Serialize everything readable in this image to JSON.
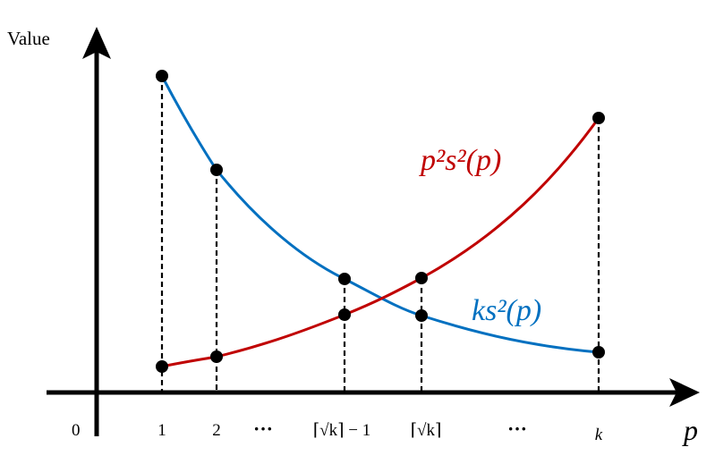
{
  "axes": {
    "y_label": "Value",
    "x_label": "p",
    "origin_label": "0"
  },
  "ticks": [
    {
      "id": "t1",
      "label": "1"
    },
    {
      "id": "t2",
      "label": "2"
    },
    {
      "id": "dots1",
      "label": "···"
    },
    {
      "id": "tsqrtm1",
      "label": "⌈√k⌉ − 1"
    },
    {
      "id": "tsqrt",
      "label": "⌈√k⌉"
    },
    {
      "id": "dots2",
      "label": "···"
    },
    {
      "id": "tk",
      "label": "k"
    }
  ],
  "curves": {
    "red": {
      "label": "p²s²(p)",
      "color": "#c00000"
    },
    "blue": {
      "label": "ks²(p)",
      "color": "#0070c0"
    }
  },
  "colors": {
    "axis": "#000000",
    "points": "#000000",
    "guides": "#000000"
  }
}
